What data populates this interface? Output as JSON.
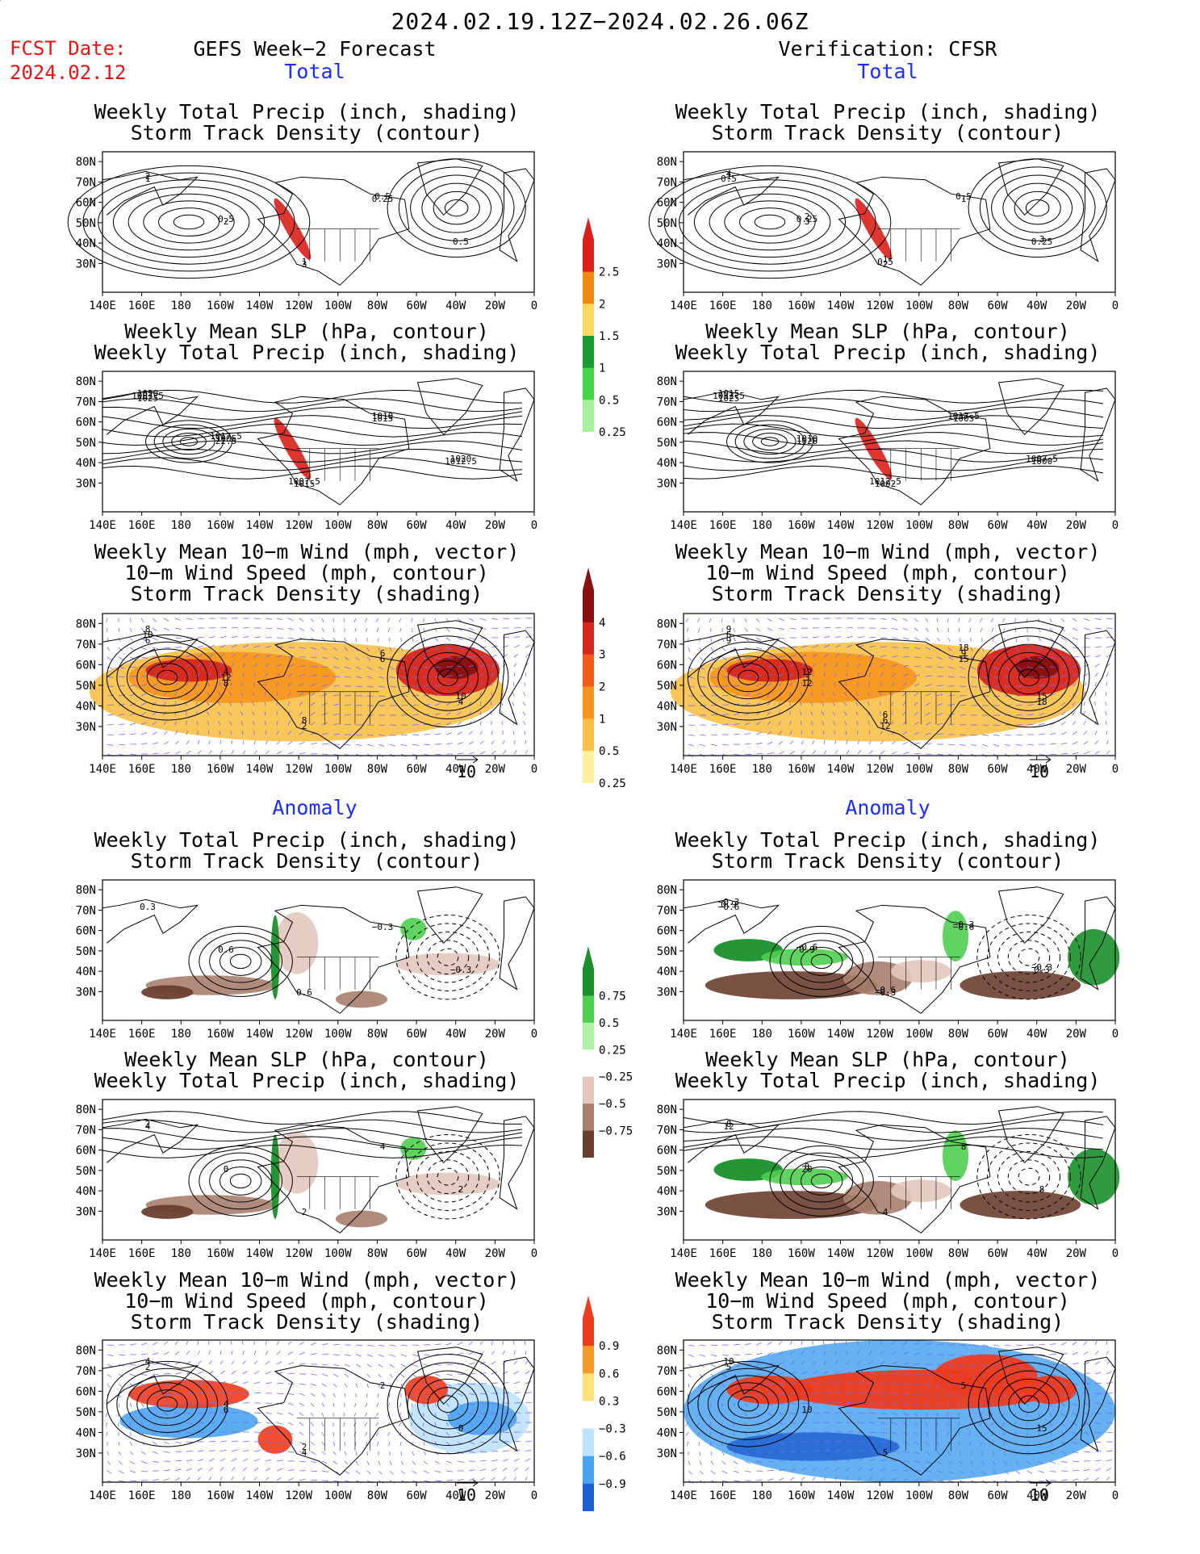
{
  "header": {
    "period": "2024.02.19.12Z−2024.02.26.06Z",
    "fcst_label": "FCST Date:",
    "fcst_date": "2024.02.12",
    "left_title": "GEFS Week−2 Forecast",
    "right_title": "Verification: CFSR"
  },
  "sections": {
    "total": "Total",
    "anomaly": "Anomaly"
  },
  "panel_titles": {
    "precip_track": [
      "Weekly Total Precip (inch, shading)",
      "Storm Track Density (contour)"
    ],
    "slp_precip": [
      "Weekly Mean SLP (hPa, contour)",
      "Weekly Total Precip (inch, shading)"
    ],
    "wind_track": [
      "Weekly Mean 10−m Wind (mph, vector)",
      "10−m Wind Speed (mph, contour)",
      "Storm Track Density (shading)"
    ]
  },
  "axes": {
    "lat_ticks": [
      "80N",
      "70N",
      "60N",
      "50N",
      "40N",
      "30N"
    ],
    "lon_ticks": [
      "140E",
      "160E",
      "180",
      "160W",
      "140W",
      "120W",
      "100W",
      "80W",
      "60W",
      "40W",
      "20W",
      "0"
    ],
    "vector_ref": "10"
  },
  "colorbars": {
    "precip_total": {
      "labels": [
        "2.5",
        "2",
        "1.5",
        "1",
        "0.5",
        "0.25"
      ],
      "colors": [
        "#d9201a",
        "#f08a10",
        "#ffd860",
        "#1e9a32",
        "#48d448",
        "#a8f0a0"
      ]
    },
    "track_total": {
      "labels": [
        "4",
        "3",
        "2",
        "1",
        "0.5",
        "0.25"
      ],
      "colors": [
        "#8a1010",
        "#d7261e",
        "#f25b1c",
        "#f7931e",
        "#f8c048",
        "#fff0a0"
      ]
    },
    "precip_anom": {
      "labels": [
        "0.75",
        "0.5",
        "0.25",
        "−0.25",
        "−0.5",
        "−0.75"
      ],
      "colors": [
        "#1a8f2a",
        "#4fcf4f",
        "#b0f0a8",
        "#ffffff",
        "#e3c8bd",
        "#a97e6e",
        "#6b3f30"
      ]
    },
    "track_anom": {
      "labels": [
        "0.9",
        "0.6",
        "0.3",
        "−0.3",
        "−0.6",
        "−0.9"
      ],
      "colors": [
        "#ee3b1c",
        "#f59a2a",
        "#ffe07a",
        "#ffffff",
        "#bfe2ff",
        "#4aa3ef",
        "#1d5fd0"
      ]
    }
  },
  "panels": {
    "L1": {
      "labels": [
        "1",
        "2",
        "3",
        "0.25",
        "0.5",
        "2",
        "0.5",
        "1",
        "0.5"
      ]
    },
    "R1": {
      "labels": [
        "0.5",
        "3",
        "2",
        "1",
        "0.25",
        "1",
        "0.25",
        "0.5",
        "0.5",
        "3",
        "4",
        "2",
        "1"
      ]
    },
    "L2": {
      "labels": [
        "1025",
        "22.5",
        "1015",
        "1015",
        "1012.5",
        "1007.5",
        "1005",
        "1007.5",
        "1010",
        "1020",
        "1020",
        "1017.5"
      ]
    },
    "R2": {
      "labels": [
        "1025",
        "1020",
        "1002",
        "1005",
        "1000",
        "1012.5",
        "1010",
        "1012.5",
        "1017.5",
        "1007.5",
        "1015"
      ]
    },
    "L3": {
      "labels": [
        "6",
        "8",
        "2",
        "6",
        "4",
        "10",
        "12",
        "8",
        "6",
        "10",
        "8",
        "4"
      ]
    },
    "R3": {
      "labels": [
        "9",
        "12",
        "12",
        "15",
        "18",
        "6",
        "3",
        "6",
        "9",
        "15",
        "9",
        "12",
        "6",
        "18"
      ]
    },
    "L4": {
      "labels": [
        "0.3",
        "0.6",
        "0.6",
        "−0.3",
        "−0.3"
      ]
    },
    "R4": {
      "labels": [
        "−0.6",
        "0.9",
        "−0.3",
        "−0.6",
        "0.3",
        "0.9",
        "−0.6",
        "−0.6",
        "−0.3",
        "−0.3",
        "−0.3"
      ]
    },
    "L5": {
      "labels": [
        "4",
        "0",
        "2",
        "4",
        "2",
        "2"
      ]
    },
    "R5": {
      "labels": [
        "12",
        "20",
        "4",
        "8",
        "8",
        "8",
        "8"
      ]
    },
    "L6": {
      "labels": [
        "2",
        "6",
        "4",
        "2",
        "0",
        "4",
        "4",
        "2"
      ]
    },
    "R6": {
      "labels": [
        "5",
        "10",
        "5",
        "5",
        "15",
        "10"
      ]
    }
  }
}
